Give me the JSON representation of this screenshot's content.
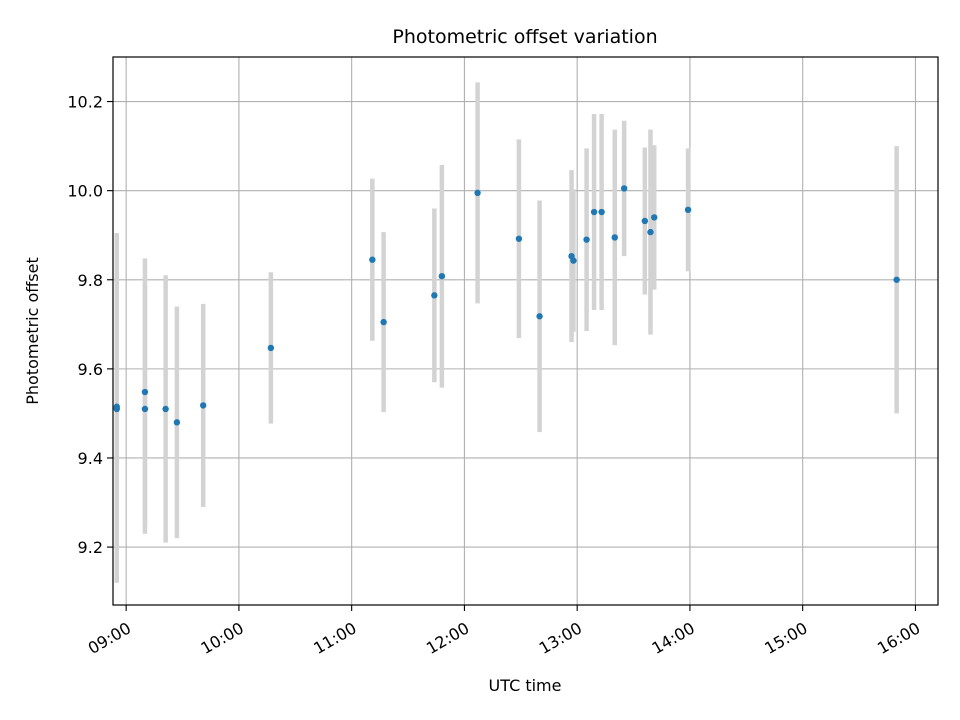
{
  "chart_data": {
    "type": "scatter",
    "title": "Photometric offset variation",
    "xlabel": "UTC time",
    "ylabel": "Photometric offset",
    "grid": true,
    "x_is_time": true,
    "xlim": [
      "08:53",
      "16:12"
    ],
    "ylim": [
      9.07,
      10.3
    ],
    "x_ticks": [
      "09:00",
      "10:00",
      "11:00",
      "12:00",
      "13:00",
      "14:00",
      "15:00",
      "16:00"
    ],
    "y_ticks": [
      9.2,
      9.4,
      9.6,
      9.8,
      10.0,
      10.2
    ],
    "y_tick_labels": [
      "9.2",
      "9.4",
      "9.6",
      "9.8",
      "10.0",
      "10.2"
    ],
    "colors": {
      "point": "#1f77b4",
      "errorbar": "#d3d3d3",
      "grid": "#b0b0b0"
    },
    "points": [
      {
        "t": "08:55",
        "y": 9.51,
        "err": 0.39
      },
      {
        "t": "08:55",
        "y": 9.515,
        "err": 0.39
      },
      {
        "t": "09:10",
        "y": 9.51,
        "err": 0.28
      },
      {
        "t": "09:10",
        "y": 9.548,
        "err": 0.3
      },
      {
        "t": "09:21",
        "y": 9.51,
        "err": 0.3
      },
      {
        "t": "09:27",
        "y": 9.48,
        "err": 0.26
      },
      {
        "t": "09:41",
        "y": 9.518,
        "err": 0.228
      },
      {
        "t": "10:17",
        "y": 9.647,
        "err": 0.17
      },
      {
        "t": "11:11",
        "y": 9.845,
        "err": 0.182
      },
      {
        "t": "11:17",
        "y": 9.705,
        "err": 0.202
      },
      {
        "t": "11:44",
        "y": 9.765,
        "err": 0.195
      },
      {
        "t": "11:48",
        "y": 9.808,
        "err": 0.25
      },
      {
        "t": "12:07",
        "y": 9.995,
        "err": 0.248
      },
      {
        "t": "12:29",
        "y": 9.892,
        "err": 0.223
      },
      {
        "t": "12:40",
        "y": 9.718,
        "err": 0.26
      },
      {
        "t": "12:57",
        "y": 9.853,
        "err": 0.193
      },
      {
        "t": "12:58",
        "y": 9.843,
        "err": 0.16
      },
      {
        "t": "13:05",
        "y": 9.89,
        "err": 0.205
      },
      {
        "t": "13:09",
        "y": 9.952,
        "err": 0.22
      },
      {
        "t": "13:13",
        "y": 9.952,
        "err": 0.22
      },
      {
        "t": "13:20",
        "y": 9.895,
        "err": 0.242
      },
      {
        "t": "13:25",
        "y": 10.005,
        "err": 0.152
      },
      {
        "t": "13:36",
        "y": 9.932,
        "err": 0.165
      },
      {
        "t": "13:39",
        "y": 9.907,
        "err": 0.23
      },
      {
        "t": "13:41",
        "y": 9.94,
        "err": 0.162
      },
      {
        "t": "13:59",
        "y": 9.957,
        "err": 0.138
      },
      {
        "t": "15:50",
        "y": 9.8,
        "err": 0.3
      }
    ]
  }
}
